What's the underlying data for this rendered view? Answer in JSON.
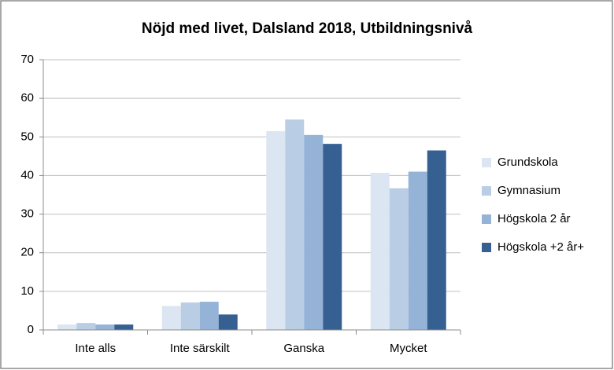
{
  "chart_data": {
    "type": "bar",
    "title": "Nöjd med livet, Dalsland 2018, Utbildningsnivå",
    "categories": [
      "Inte alls",
      "Inte särskilt",
      "Ganska",
      "Mycket"
    ],
    "series": [
      {
        "name": "Grundskola",
        "color": "#dce6f2",
        "values": [
          1.4,
          6.2,
          51.5,
          40.7
        ]
      },
      {
        "name": "Gymnasium",
        "color": "#b9cde5",
        "values": [
          1.8,
          7.1,
          54.5,
          36.7
        ]
      },
      {
        "name": "Högskola 2 år",
        "color": "#95b3d7",
        "values": [
          1.4,
          7.3,
          50.5,
          41.0
        ]
      },
      {
        "name": "Högskola +2 år+",
        "color": "#376092",
        "values": [
          1.4,
          4.0,
          48.2,
          46.5
        ]
      }
    ],
    "ylim": [
      0,
      70
    ],
    "yticks": [
      0,
      10,
      20,
      30,
      40,
      50,
      60,
      70
    ],
    "grid": true,
    "legend": "right"
  }
}
